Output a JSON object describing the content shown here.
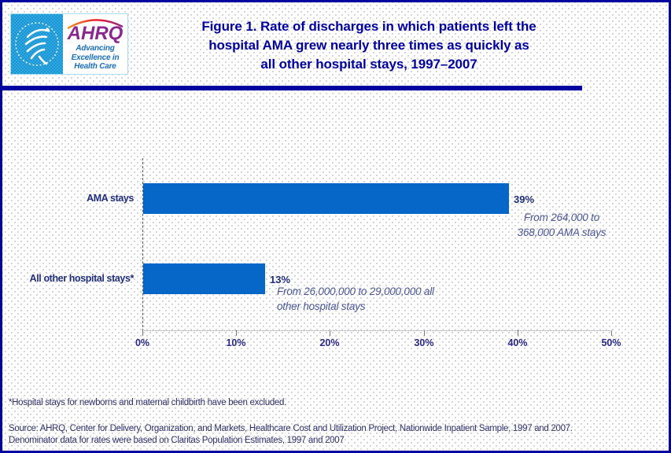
{
  "header": {
    "logo": {
      "org": "AHRQ",
      "tagline_lines": [
        "Advancing",
        "Excellence in",
        "Health Care"
      ],
      "seal_icon": "hhs-eagle-seal-icon",
      "arc_icon": "rainbow-arc-icon",
      "colors": {
        "seal_bg": "#2FA9E1",
        "ahrq_purple": "#8A2890",
        "tagline_blue": "#1A6FBE"
      }
    },
    "title_lines": [
      "Figure 1. Rate of discharges in which patients left the",
      "hospital AMA grew nearly three times as quickly as",
      "all other hospital stays, 1997–2007"
    ],
    "title_color": "#0000A0"
  },
  "chart_data": {
    "type": "bar",
    "orientation": "horizontal",
    "title": "Figure 1. Rate of discharges in which patients left the hospital AMA grew nearly three times as quickly as all other hospital stays, 1997–2007",
    "categories": [
      "AMA stays",
      "All other hospital stays*"
    ],
    "values": [
      39,
      13
    ],
    "value_labels": [
      "39%",
      "13%"
    ],
    "annotations": [
      {
        "lines": [
          "From 264,000 to",
          "368,000 AMA stays"
        ],
        "align": "center"
      },
      {
        "lines": [
          "From 26,000,000 to 29,000,000 all",
          "other hospital stays"
        ],
        "align": "left"
      }
    ],
    "xlabel": "",
    "ylabel": "",
    "xlim": [
      0,
      50
    ],
    "x_tick_values": [
      0,
      10,
      20,
      30,
      40,
      50
    ],
    "x_tick_labels": [
      "0%",
      "10%",
      "20%",
      "30%",
      "40%",
      "50%"
    ],
    "bar_color": "#0667C8",
    "grid": false,
    "legend": false
  },
  "footer": {
    "footnote": "*Hospital stays for newborns and maternal childbirth have been excluded.",
    "source_lines": [
      "Source: AHRQ, Center for Delivery, Organization, and Markets, Healthcare Cost and Utilization Project, Nationwide Inpatient Sample, 1997 and 2007.",
      "Denominator data for rates were based on Claritas Population Estimates, 1997 and 2007"
    ]
  }
}
